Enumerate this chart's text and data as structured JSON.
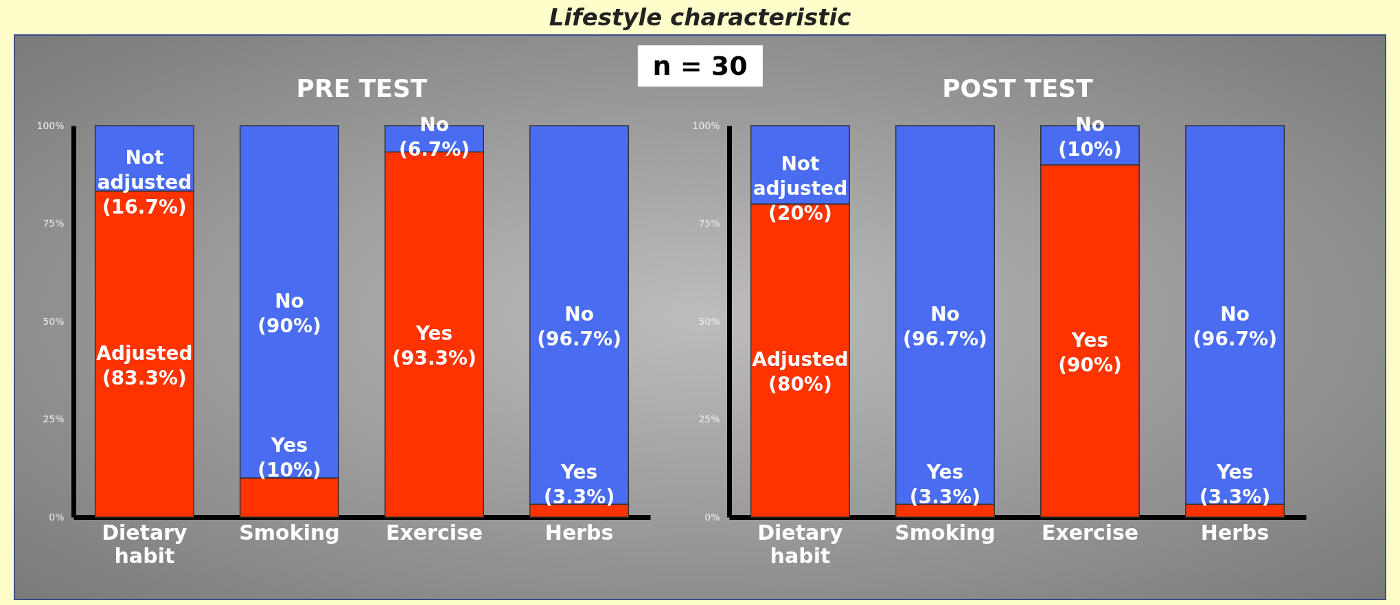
{
  "chart_data": [
    {
      "type": "bar",
      "title": "PRE TEST",
      "annotations": [
        "Lifestyle characteristic",
        "n = 30"
      ],
      "categories": [
        "Dietary habit",
        "Smoking",
        "Exercise",
        "Herbs"
      ],
      "stacked": true,
      "legend": false,
      "grid": false,
      "series": [
        {
          "color": "#ff3300",
          "values": [
            83.3,
            10,
            93.3,
            3.3
          ],
          "value_labels": [
            "Adjusted (83.3%)",
            "Yes (10%)",
            "Yes (93.3%)",
            "Yes (3.3%)"
          ]
        },
        {
          "color": "#4a6cf0",
          "values": [
            16.7,
            90,
            6.7,
            96.7
          ],
          "value_labels": [
            "Not adjusted (16.7%)",
            "No (90%)",
            "No (6.7%)",
            "No (96.7%)"
          ]
        }
      ],
      "ylim": [
        0,
        100
      ],
      "yticks": [
        {
          "value": 0,
          "label": "0%"
        },
        {
          "value": 25,
          "label": "25%"
        },
        {
          "value": 50,
          "label": "50%"
        },
        {
          "value": 75,
          "label": "75%"
        },
        {
          "value": 100,
          "label": "100%"
        }
      ]
    },
    {
      "type": "bar",
      "title": "POST TEST",
      "categories": [
        "Dietary habit",
        "Smoking",
        "Exercise",
        "Herbs"
      ],
      "stacked": true,
      "legend": false,
      "grid": false,
      "series": [
        {
          "color": "#ff3300",
          "values": [
            80,
            3.3,
            90,
            3.3
          ],
          "value_labels": [
            "Adjusted (80%)",
            "Yes (3.3%)",
            "Yes (90%)",
            "Yes (3.3%)"
          ]
        },
        {
          "color": "#4a6cf0",
          "values": [
            20,
            96.7,
            10,
            96.7
          ],
          "value_labels": [
            "Not adjusted (20%)",
            "No (96.7%)",
            "No (10%)",
            "No (96.7%)"
          ]
        }
      ],
      "ylim": [
        0,
        100
      ],
      "yticks": [
        {
          "value": 0,
          "label": "0%"
        },
        {
          "value": 25,
          "label": "25%"
        },
        {
          "value": 50,
          "label": "50%"
        },
        {
          "value": 75,
          "label": "75%"
        },
        {
          "value": 100,
          "label": "100%"
        }
      ]
    }
  ]
}
